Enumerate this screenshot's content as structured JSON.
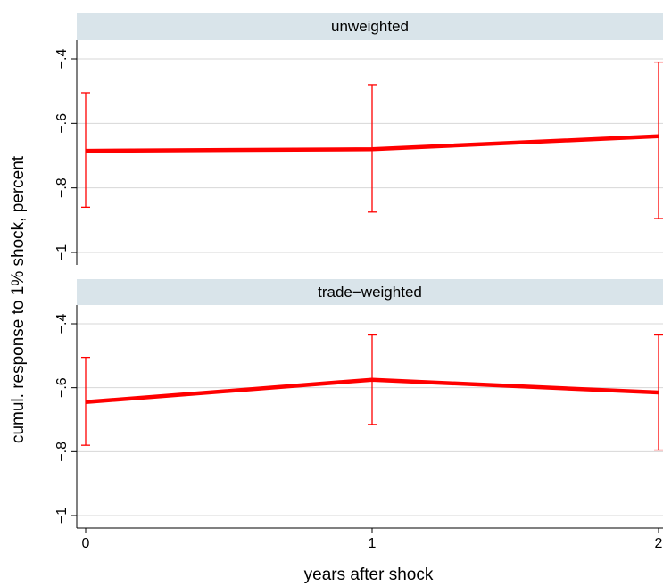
{
  "chart_data": {
    "type": "line",
    "layout": "two vertically stacked panels sharing the x axis",
    "xlabel": "years after shock",
    "ylabel": "cumul. response to 1% shock, percent",
    "x": [
      0,
      1,
      2
    ],
    "xlim": [
      0,
      2
    ],
    "x_ticks": [
      "0",
      "1",
      "2"
    ],
    "ylim": [
      -1.05,
      -0.37
    ],
    "y_ticks": [
      -0.4,
      -0.6,
      -0.8,
      -1
    ],
    "y_tick_labels": [
      "-.4",
      "-.6",
      "-.8",
      "-1"
    ],
    "grid": true,
    "line_color": "#ff0000",
    "errorbar_color": "#ff0000",
    "panel_header_color": "#d9e4ea",
    "panels": [
      {
        "title": "unweighted",
        "values": [
          -0.685,
          -0.68,
          -0.64
        ],
        "ci_low": [
          -0.86,
          -0.875,
          -0.895
        ],
        "ci_high": [
          -0.505,
          -0.48,
          -0.41
        ]
      },
      {
        "title": "trade−weighted",
        "values": [
          -0.645,
          -0.575,
          -0.615
        ],
        "ci_low": [
          -0.78,
          -0.715,
          -0.795
        ],
        "ci_high": [
          -0.505,
          -0.435,
          -0.435
        ]
      }
    ]
  }
}
